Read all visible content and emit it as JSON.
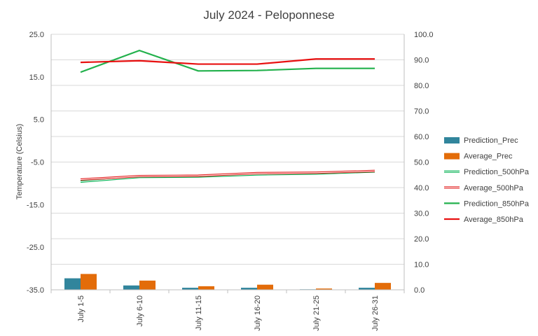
{
  "chart_data": {
    "type": "bar",
    "title": "July 2024 - Peloponnese",
    "xlabel": "",
    "ylabel": "Temperature (Celsius)",
    "y2label": "",
    "categories": [
      "July 1-5",
      "July 6-10",
      "July 11-15",
      "July 16-20",
      "July 21-25",
      "July 26-31"
    ],
    "ylim": [
      -35,
      25
    ],
    "yticks": [
      "25.0",
      "15.0",
      "5.0",
      "-5.0",
      "-15.0",
      "-25.0",
      "-35.0"
    ],
    "y2lim": [
      0,
      100
    ],
    "y2ticks": [
      "100.0",
      "90.0",
      "80.0",
      "70.0",
      "60.0",
      "50.0",
      "40.0",
      "30.0",
      "20.0",
      "10.0",
      "0.0"
    ],
    "grid": true,
    "legend_position": "right",
    "series": [
      {
        "name": "Prediction_Prec",
        "type": "bar",
        "axis": "right",
        "color": "#31859c",
        "values": [
          4.5,
          1.7,
          0.8,
          0.8,
          0.2,
          0.8
        ]
      },
      {
        "name": "Average_Prec",
        "type": "bar",
        "axis": "right",
        "color": "#e36c09",
        "values": [
          6.2,
          3.6,
          1.4,
          2.0,
          0.5,
          2.7
        ]
      },
      {
        "name": "Prediction_500hPa",
        "type": "line",
        "style": "double",
        "axis": "left",
        "color": "#00b050",
        "values": [
          -9.6,
          -8.5,
          -8.4,
          -7.9,
          -7.7,
          -7.2
        ]
      },
      {
        "name": "Average_500hPa",
        "type": "line",
        "style": "double",
        "axis": "left",
        "color": "#e32020",
        "values": [
          -9.1,
          -8.3,
          -8.2,
          -7.6,
          -7.5,
          -7.1
        ]
      },
      {
        "name": "Prediction_850hPa",
        "type": "line",
        "axis": "left",
        "color": "#22b14c",
        "values": [
          16.1,
          21.2,
          16.4,
          16.5,
          17.0,
          17.0
        ]
      },
      {
        "name": "Average_850hPa",
        "type": "line",
        "axis": "left",
        "color": "#e81010",
        "values": [
          18.4,
          18.8,
          18.0,
          18.0,
          19.2,
          19.2
        ]
      }
    ]
  }
}
